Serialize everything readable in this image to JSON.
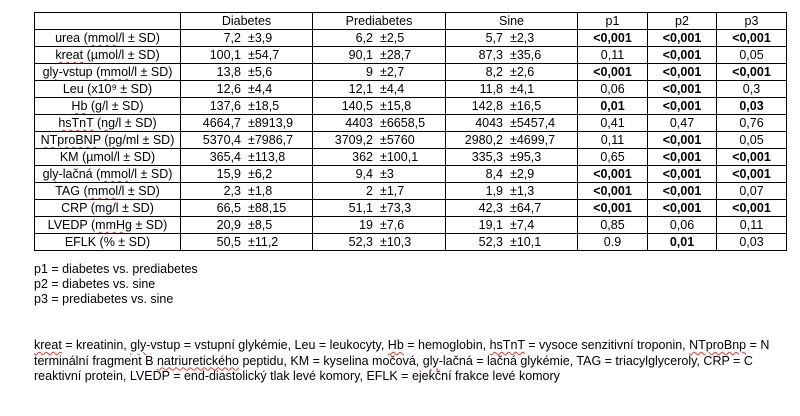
{
  "table": {
    "headers": [
      "",
      "Diabetes",
      "Prediabetes",
      "Sine",
      "p1",
      "p2",
      "p3"
    ],
    "rows": [
      {
        "label": "urea (mmol/l ± SD)",
        "d_mean": "7,2",
        "d_sd": "±3,9",
        "pd_mean": "6,2",
        "pd_sd": "±2,5",
        "s_mean": "5,7",
        "s_sd": "±2,3",
        "p1": "<0,001",
        "p2": "<0,001",
        "p3": "<0,001",
        "bold": [
          true,
          true,
          true
        ]
      },
      {
        "label": "kreat (µmol/l ± SD)",
        "d_mean": "100,1",
        "d_sd": "±54,7",
        "pd_mean": "90,1",
        "pd_sd": "±28,7",
        "s_mean": "87,3",
        "s_sd": "±35,6",
        "p1": "0,11",
        "p2": "<0,001",
        "p3": "0,05",
        "bold": [
          false,
          true,
          false
        ]
      },
      {
        "label": "gly-vstup (mmol/l ± SD)",
        "d_mean": "13,8",
        "d_sd": "±5,6",
        "pd_mean": "9",
        "pd_sd": "±2,7",
        "s_mean": "8,2",
        "s_sd": "±2,6",
        "p1": "<0,001",
        "p2": "<0,001",
        "p3": "<0,001",
        "bold": [
          true,
          true,
          true
        ]
      },
      {
        "label": "Leu (x10⁹ ± SD)",
        "d_mean": "12,6",
        "d_sd": "±4,4",
        "pd_mean": "12,1",
        "pd_sd": "±4,4",
        "s_mean": "11,8",
        "s_sd": "±4,1",
        "p1": "0,06",
        "p2": "<0,001",
        "p3": "0,3",
        "bold": [
          false,
          true,
          false
        ]
      },
      {
        "label": "Hb (g/l ± SD)",
        "d_mean": "137,6",
        "d_sd": "±18,5",
        "pd_mean": "140,5",
        "pd_sd": "±15,8",
        "s_mean": "142,8",
        "s_sd": "±16,5",
        "p1": "0,01",
        "p2": "<0,001",
        "p3": "0,03",
        "bold": [
          true,
          true,
          true
        ]
      },
      {
        "label": "hsTnT (ng/l ± SD)",
        "d_mean": "4664,7",
        "d_sd": "±8913,9",
        "pd_mean": "4403",
        "pd_sd": "±6658,5",
        "s_mean": "4043",
        "s_sd": "±5457,4",
        "p1": "0,41",
        "p2": "0,47",
        "p3": "0,76",
        "bold": [
          false,
          false,
          false
        ]
      },
      {
        "label": "NTproBNP (pg/ml ± SD)",
        "d_mean": "5370,4",
        "d_sd": "±7986,7",
        "pd_mean": "3709,2",
        "pd_sd": "±5760",
        "s_mean": "2980,2",
        "s_sd": "±4699,7",
        "p1": "0,11",
        "p2": "<0,001",
        "p3": "0,05",
        "bold": [
          false,
          true,
          false
        ]
      },
      {
        "label": "KM (µmol/l ± SD)",
        "d_mean": "365,4",
        "d_sd": "±113,8",
        "pd_mean": "362",
        "pd_sd": "±100,1",
        "s_mean": "335,3",
        "s_sd": "±95,3",
        "p1": "0,65",
        "p2": "<0,001",
        "p3": "<0,001",
        "bold": [
          false,
          true,
          true
        ]
      },
      {
        "label": "gly-lačná (mmol/l ± SD)",
        "d_mean": "15,9",
        "d_sd": "±6,2",
        "pd_mean": "9,4",
        "pd_sd": "±3",
        "s_mean": "8,4",
        "s_sd": "±2,9",
        "p1": "<0,001",
        "p2": "<0,001",
        "p3": "<0,001",
        "bold": [
          true,
          true,
          true
        ]
      },
      {
        "label": "TAG (mmol/l ± SD)",
        "d_mean": "2,3",
        "d_sd": "±1,8",
        "pd_mean": "2",
        "pd_sd": "±1,7",
        "s_mean": "1,9",
        "s_sd": "±1,3",
        "p1": "<0,001",
        "p2": "<0,001",
        "p3": "0,07",
        "bold": [
          true,
          true,
          false
        ]
      },
      {
        "label": "CRP (mg/l ± SD)",
        "d_mean": "66,5",
        "d_sd": "±88,15",
        "pd_mean": "51,1",
        "pd_sd": "±73,3",
        "s_mean": "42,3",
        "s_sd": "±64,7",
        "p1": "<0,001",
        "p2": "<0,001",
        "p3": "<0,001",
        "bold": [
          true,
          true,
          true
        ]
      },
      {
        "label": "LVEDP (mmHg ± SD)",
        "d_mean": "20,9",
        "d_sd": "±8,5",
        "pd_mean": "19",
        "pd_sd": "±7,6",
        "s_mean": "19,1",
        "s_sd": "±7,4",
        "p1": "0,85",
        "p2": "0,06",
        "p3": "0,11",
        "bold": [
          false,
          false,
          false
        ]
      },
      {
        "label": "EFLK (% ± SD)",
        "d_mean": "50,5",
        "d_sd": "±11,2",
        "pd_mean": "52,3",
        "pd_sd": "±10,3",
        "s_mean": "52,3",
        "s_sd": "±10,1",
        "p1": "0.9",
        "p2": "0,01",
        "p3": "0,03",
        "bold": [
          false,
          true,
          false
        ]
      }
    ]
  },
  "legend": [
    "p1 = diabetes vs. prediabetes",
    "p2 = diabetes vs. sine",
    "p3 = prediabetes vs. sine"
  ],
  "abbreviations": "kreat = kreatinin, gly-vstup = vstupní glykémie, Leu = leukocyty, Hb = hemoglobin, hsTnT = vysoce senzitivní troponin, NTproBnp = N terminální fragment B natriuretického peptidu, KM = kyselina močová, gly-lačná = lačná glykémie, TAG = triacylglyceroly, CRP = C reaktivní protein, LVEDP = end-diastolický tlak levé komory, EFLK = ejekční frakce levé komory",
  "spellcheck_words": [
    "mmol",
    "kreat",
    "gly",
    "Hb",
    "hsTnT",
    "ng",
    "NTproBNP",
    "pg",
    "mmHg",
    "NTproBnp",
    "natriuretického"
  ]
}
